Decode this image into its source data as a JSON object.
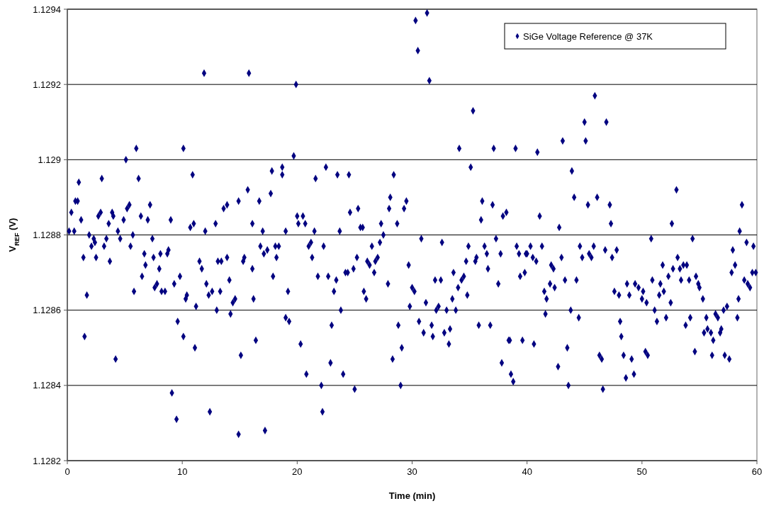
{
  "chart_data": {
    "type": "scatter",
    "xlabel": "Time (min)",
    "ylabel": "V$_{REF}$ (V)",
    "xlim": [
      0,
      60
    ],
    "xticks": [
      0,
      10,
      20,
      30,
      40,
      50,
      60
    ],
    "ylim": [
      1.1282,
      1.1294
    ],
    "yticks": [
      1.1282,
      1.1284,
      1.1286,
      1.1288,
      1.129,
      1.1292,
      1.1294
    ],
    "grid": "y",
    "legend": "top right",
    "marker": "diamond",
    "series": [
      {
        "name": "SiGe Voltage Reference @ 37K",
        "color": "#000080",
        "x": [
          11.9,
          15.8,
          19.9,
          6.0,
          10.1,
          5.1,
          19.7,
          1.0,
          3.0,
          6.2,
          10.9,
          17.8,
          18.7,
          18.7,
          0.7,
          0.9,
          0.35,
          1.2,
          2.7,
          2.9,
          3.6,
          3.9,
          4.0,
          4.9,
          5.2,
          5.4,
          6.4,
          7.0,
          7.2,
          9.0,
          10.7,
          11.0,
          12.0,
          12.9,
          13.6,
          13.9,
          14.9,
          15.7,
          16.1,
          16.7,
          17.0,
          17.7,
          19.0,
          20.0,
          0.15,
          0.6,
          1.9,
          2.3,
          3.4,
          4.4,
          4.6,
          5.7,
          7.4,
          2.4,
          2.1,
          3.2,
          5.5,
          1.4,
          2.5,
          3.7,
          1.7,
          1.5,
          4.2,
          6.7,
          6.8,
          7.5,
          8.1,
          8.7,
          8.8,
          6.5,
          5.8,
          8.0,
          7.6,
          7.8,
          8.2,
          8.5,
          9.3,
          9.8,
          10.3,
          10.4,
          11.2,
          9.6,
          10.1,
          11.1,
          9.1,
          9.5,
          12.4,
          14.9,
          17.2,
          11.5,
          11.7,
          12.1,
          12.3,
          12.6,
          13.0,
          13.1,
          13.4,
          13.9,
          14.1,
          13.3,
          14.4,
          14.6,
          14.2,
          15.1,
          15.3,
          15.4,
          16.1,
          16.2,
          16.4,
          16.8,
          17.1,
          17.4,
          18.1,
          18.4,
          18.2,
          17.9,
          19.2,
          19.0,
          19.3,
          30.3,
          31.3,
          30.5,
          31.5,
          35.3,
          34.1,
          37.1,
          39.0,
          35.1,
          22.5,
          21.6,
          23.5,
          24.5,
          28.4,
          28.1,
          29.5,
          28.0,
          29.3,
          24.6,
          25.3,
          20.5,
          20.1,
          20.7,
          21.5,
          23.7,
          25.5,
          25.7,
          27.3,
          28.7,
          27.5,
          36.1,
          37.0,
          36.0,
          37.9,
          38.2,
          30.8,
          37.3,
          21.0,
          21.2,
          21.3,
          22.3,
          21.8,
          22.7,
          23.4,
          23.2,
          23.8,
          23.0,
          20.3,
          20.8,
          22.1,
          22.2,
          22.9,
          24.0,
          25.0,
          24.2,
          24.4,
          24.9,
          25.2,
          25.8,
          26.0,
          26.1,
          26.3,
          26.7,
          26.5,
          26.8,
          27.0,
          27.2,
          27.9,
          28.8,
          28.3,
          29.1,
          29.0,
          29.7,
          29.8,
          30.0,
          30.2,
          30.6,
          31.0,
          31.2,
          31.7,
          31.8,
          32.0,
          32.5,
          32.6,
          32.1,
          32.3,
          32.8,
          33.0,
          33.2,
          33.3,
          33.5,
          33.6,
          33.8,
          34.0,
          34.3,
          34.5,
          34.7,
          34.8,
          34.9,
          35.5,
          35.6,
          35.8,
          36.3,
          36.5,
          36.6,
          36.8,
          37.5,
          37.7,
          37.8,
          38.4,
          38.5,
          38.6,
          38.8,
          39.1,
          39.3,
          39.4,
          39.6,
          39.8,
          39.9,
          45.9,
          45.0,
          46.9,
          43.1,
          45.1,
          40.9,
          43.9,
          44.1,
          46.1,
          45.3,
          47.2,
          53.0,
          58.7,
          41.1,
          42.8,
          47.3,
          52.6,
          58.5,
          50.8,
          54.4,
          40.3,
          41.3,
          40.0,
          40.5,
          40.8,
          42.1,
          42.3,
          43.0,
          41.5,
          41.7,
          42.0,
          42.4,
          43.3,
          44.3,
          44.6,
          44.8,
          45.4,
          45.6,
          45.8,
          46.8,
          47.4,
          47.8,
          47.6,
          48.0,
          41.6,
          43.8,
          44.5,
          40.6,
          43.5,
          42.7,
          43.6,
          46.3,
          46.5,
          46.6,
          48.1,
          48.2,
          48.4,
          49.1,
          48.6,
          49.3,
          48.7,
          48.9,
          49.4,
          49.7,
          50.1,
          50.0,
          50.4,
          50.3,
          50.5,
          50.9,
          51.1,
          51.3,
          51.5,
          51.6,
          51.8,
          51.9,
          52.1,
          52.3,
          52.5,
          52.7,
          53.1,
          53.3,
          53.4,
          53.6,
          53.9,
          54.1,
          53.8,
          54.2,
          54.6,
          54.7,
          54.9,
          55.0,
          55.3,
          55.6,
          55.4,
          55.7,
          56.0,
          56.2,
          56.1,
          56.4,
          56.6,
          56.8,
          56.9,
          57.1,
          57.4,
          57.2,
          57.6,
          57.8,
          57.9,
          58.1,
          58.3,
          58.4,
          58.9,
          59.1,
          59.2,
          59.4,
          59.6,
          59.7,
          59.9
        ],
        "values": [
          1.12923,
          1.12923,
          1.1292,
          1.12903,
          1.12903,
          1.129,
          1.12901,
          1.12894,
          1.12895,
          1.12895,
          1.12896,
          1.12897,
          1.12898,
          1.12896,
          1.12889,
          1.12889,
          1.12886,
          1.12884,
          1.12885,
          1.12886,
          1.12883,
          1.12886,
          1.12885,
          1.12884,
          1.12887,
          1.12888,
          1.12885,
          1.12884,
          1.12888,
          1.12884,
          1.12882,
          1.12883,
          1.12881,
          1.12883,
          1.12887,
          1.12888,
          1.12889,
          1.12892,
          1.12883,
          1.12889,
          1.12881,
          1.12891,
          1.12881,
          1.12885,
          1.12881,
          1.12881,
          1.1288,
          1.12879,
          1.12879,
          1.12881,
          1.12879,
          1.1288,
          1.12879,
          1.12878,
          1.12877,
          1.12877,
          1.12877,
          1.12874,
          1.12874,
          1.12873,
          1.12864,
          1.12853,
          1.12847,
          1.12875,
          1.12872,
          1.12874,
          1.12875,
          1.12875,
          1.12876,
          1.12869,
          1.12865,
          1.12871,
          1.12866,
          1.12867,
          1.12865,
          1.12865,
          1.12867,
          1.12869,
          1.12863,
          1.12864,
          1.12861,
          1.12857,
          1.12853,
          1.1285,
          1.12838,
          1.12831,
          1.12833,
          1.12827,
          1.12828,
          1.12873,
          1.12871,
          1.12867,
          1.12864,
          1.12865,
          1.1286,
          1.12873,
          1.12873,
          1.12874,
          1.12868,
          1.12865,
          1.12862,
          1.12863,
          1.12859,
          1.12848,
          1.12873,
          1.12874,
          1.12871,
          1.12863,
          1.12852,
          1.12877,
          1.12875,
          1.12876,
          1.12877,
          1.12877,
          1.12874,
          1.12869,
          1.12865,
          1.12858,
          1.12857,
          1.12937,
          1.12939,
          1.12929,
          1.12921,
          1.12913,
          1.12903,
          1.12903,
          1.12903,
          1.12898,
          1.12898,
          1.12895,
          1.12896,
          1.12896,
          1.12896,
          1.1289,
          1.12889,
          1.12887,
          1.12887,
          1.12886,
          1.12887,
          1.12885,
          1.12883,
          1.12883,
          1.12881,
          1.12881,
          1.12882,
          1.12882,
          1.12883,
          1.12883,
          1.1288,
          1.12889,
          1.12888,
          1.12884,
          1.12885,
          1.12886,
          1.12879,
          1.12879,
          1.12877,
          1.12878,
          1.12874,
          1.12877,
          1.12869,
          1.12869,
          1.12868,
          1.12865,
          1.1286,
          1.12856,
          1.12851,
          1.12843,
          1.1284,
          1.12833,
          1.12846,
          1.12843,
          1.12839,
          1.1287,
          1.1287,
          1.12871,
          1.12874,
          1.12865,
          1.12863,
          1.12873,
          1.12872,
          1.1287,
          1.12877,
          1.12873,
          1.12874,
          1.12878,
          1.12867,
          1.12856,
          1.12847,
          1.1285,
          1.1284,
          1.12872,
          1.12861,
          1.12866,
          1.12865,
          1.12857,
          1.12854,
          1.12862,
          1.12856,
          1.12853,
          1.12868,
          1.12868,
          1.12878,
          1.1286,
          1.12861,
          1.12854,
          1.1286,
          1.12851,
          1.12855,
          1.12863,
          1.1287,
          1.1286,
          1.12866,
          1.12868,
          1.12869,
          1.12873,
          1.12864,
          1.12877,
          1.12873,
          1.12874,
          1.12856,
          1.12877,
          1.12875,
          1.12871,
          1.12856,
          1.12867,
          1.12875,
          1.12846,
          1.12852,
          1.12852,
          1.12843,
          1.12841,
          1.12877,
          1.12875,
          1.12869,
          1.12852,
          1.1287,
          1.12875,
          1.12917,
          1.1291,
          1.1291,
          1.12905,
          1.12905,
          1.12902,
          1.12897,
          1.1289,
          1.1289,
          1.12888,
          1.12888,
          1.12892,
          1.12888,
          1.12885,
          1.12882,
          1.12883,
          1.12883,
          1.12881,
          1.12879,
          1.12879,
          1.12877,
          1.12877,
          1.12875,
          1.12874,
          1.12873,
          1.12872,
          1.12871,
          1.12874,
          1.12865,
          1.12863,
          1.12867,
          1.12866,
          1.12868,
          1.12868,
          1.12877,
          1.12874,
          1.12875,
          1.12874,
          1.12877,
          1.12876,
          1.12874,
          1.12876,
          1.12865,
          1.12864,
          1.12859,
          1.1286,
          1.12858,
          1.12851,
          1.1285,
          1.12845,
          1.1284,
          1.12848,
          1.12847,
          1.12839,
          1.12857,
          1.12853,
          1.12848,
          1.12847,
          1.12842,
          1.12843,
          1.12867,
          1.12864,
          1.12867,
          1.12866,
          1.12865,
          1.12863,
          1.12862,
          1.12849,
          1.12848,
          1.12868,
          1.1286,
          1.12857,
          1.12864,
          1.12867,
          1.12872,
          1.12865,
          1.12858,
          1.12869,
          1.12862,
          1.12871,
          1.12874,
          1.12871,
          1.12868,
          1.12872,
          1.12872,
          1.12868,
          1.12856,
          1.12858,
          1.12849,
          1.12869,
          1.12867,
          1.12866,
          1.12863,
          1.12858,
          1.12854,
          1.12855,
          1.12854,
          1.12852,
          1.12848,
          1.12859,
          1.12858,
          1.12854,
          1.12855,
          1.1286,
          1.12861,
          1.12848,
          1.12847,
          1.1287,
          1.12876,
          1.12872,
          1.12858,
          1.12863,
          1.12868,
          1.12878,
          1.12867,
          1.12866,
          1.1287,
          1.12877,
          1.1287
        ]
      }
    ]
  }
}
